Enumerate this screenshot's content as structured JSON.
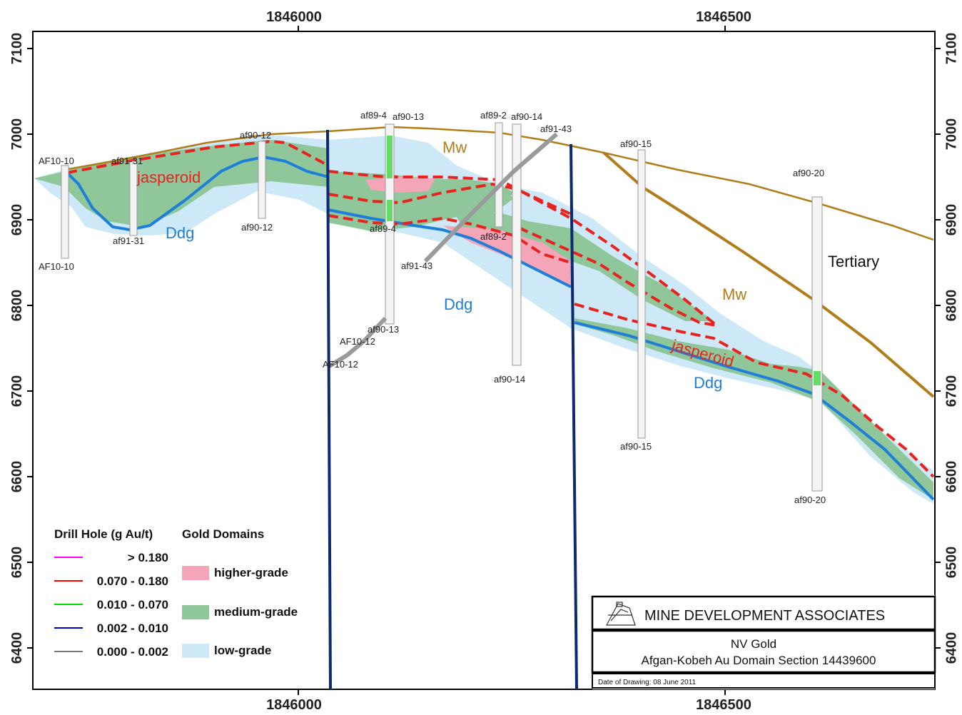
{
  "axes": {
    "easting_ticks": [
      "1846000",
      "1846500"
    ],
    "elevation_ticks": [
      "7100",
      "7000",
      "6900",
      "6800",
      "6700",
      "6600",
      "6500",
      "6400"
    ]
  },
  "drill_holes": {
    "af10_10": "AF10-10",
    "af91_31": "af91-31",
    "af90_12": "af90-12",
    "af89_4": "af89-4",
    "af90_13": "af90-13",
    "af89_2": "af89-2",
    "af90_14": "af90-14",
    "af91_43": "af91-43",
    "af90_15": "af90-15",
    "af90_20": "af90-20",
    "af10_12": "AF10-12"
  },
  "units": {
    "jasperoid": "jasperoid",
    "ddg": "Ddg",
    "mw": "Mw",
    "tertiary": "Tertiary"
  },
  "legend": {
    "drill_hole_title": "Drill Hole (g Au/t)",
    "grades": [
      {
        "label": "> 0.180",
        "color": "#ff00ff"
      },
      {
        "label": "0.070 - 0.180",
        "color": "#ff0000"
      },
      {
        "label": "0.010 - 0.070",
        "color": "#00dd00"
      },
      {
        "label": "0.002 - 0.010",
        "color": "#0000cc"
      },
      {
        "label": "0.000 - 0.002",
        "color": "#777777"
      }
    ],
    "domains_title": "Gold Domains",
    "domains": [
      {
        "label": "higher-grade",
        "color": "#f4a6b8"
      },
      {
        "label": "medium-grade",
        "color": "#8fc69a"
      },
      {
        "label": "low-grade",
        "color": "#cde9f7"
      }
    ]
  },
  "title_block": {
    "company": "MINE DEVELOPMENT ASSOCIATES",
    "project": "NV Gold",
    "section": "Afgan-Kobeh Au Domain Section 14439600",
    "date": "Date of Drawing: 08 June 2011"
  },
  "colors": {
    "topography": "#b07d1a",
    "fault": "#0d2a6e",
    "jasperoid_line": "#e8231f",
    "ddg_contact": "#1e7fd8"
  }
}
